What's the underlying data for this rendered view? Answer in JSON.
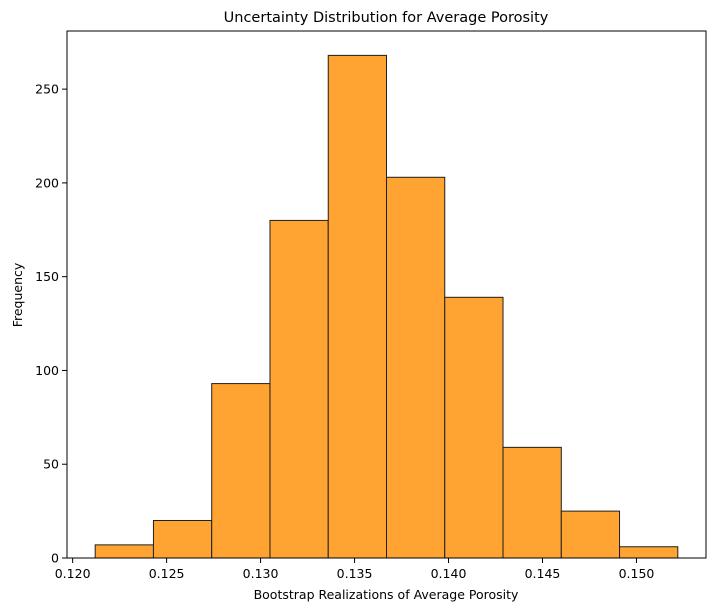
{
  "chart_data": {
    "type": "bar",
    "title": "Uncertainty Distribution for Average Porosity",
    "xlabel": "Bootstrap Realizations of Average Porosity",
    "ylabel": "Frequency",
    "xlim": [
      0.1197,
      0.1537
    ],
    "ylim": [
      0,
      281
    ],
    "grid": false,
    "bar_color": "#ffa333",
    "edge_color": "#1f1f1f",
    "bins": [
      {
        "start": 0.1212,
        "end": 0.1243,
        "count": 7
      },
      {
        "start": 0.1243,
        "end": 0.1274,
        "count": 20
      },
      {
        "start": 0.1274,
        "end": 0.1305,
        "count": 93
      },
      {
        "start": 0.1305,
        "end": 0.1336,
        "count": 180
      },
      {
        "start": 0.1336,
        "end": 0.1367,
        "count": 268
      },
      {
        "start": 0.1367,
        "end": 0.1398,
        "count": 203
      },
      {
        "start": 0.1398,
        "end": 0.1429,
        "count": 139
      },
      {
        "start": 0.1429,
        "end": 0.146,
        "count": 59
      },
      {
        "start": 0.146,
        "end": 0.1491,
        "count": 25
      },
      {
        "start": 0.1491,
        "end": 0.1522,
        "count": 6
      }
    ],
    "x_ticks": [
      {
        "value": 0.12,
        "label": "0.120"
      },
      {
        "value": 0.125,
        "label": "0.125"
      },
      {
        "value": 0.13,
        "label": "0.130"
      },
      {
        "value": 0.135,
        "label": "0.135"
      },
      {
        "value": 0.14,
        "label": "0.140"
      },
      {
        "value": 0.145,
        "label": "0.145"
      },
      {
        "value": 0.15,
        "label": "0.150"
      }
    ],
    "y_ticks": [
      {
        "value": 0,
        "label": "0"
      },
      {
        "value": 50,
        "label": "50"
      },
      {
        "value": 100,
        "label": "100"
      },
      {
        "value": 150,
        "label": "150"
      },
      {
        "value": 200,
        "label": "200"
      },
      {
        "value": 250,
        "label": "250"
      }
    ]
  }
}
